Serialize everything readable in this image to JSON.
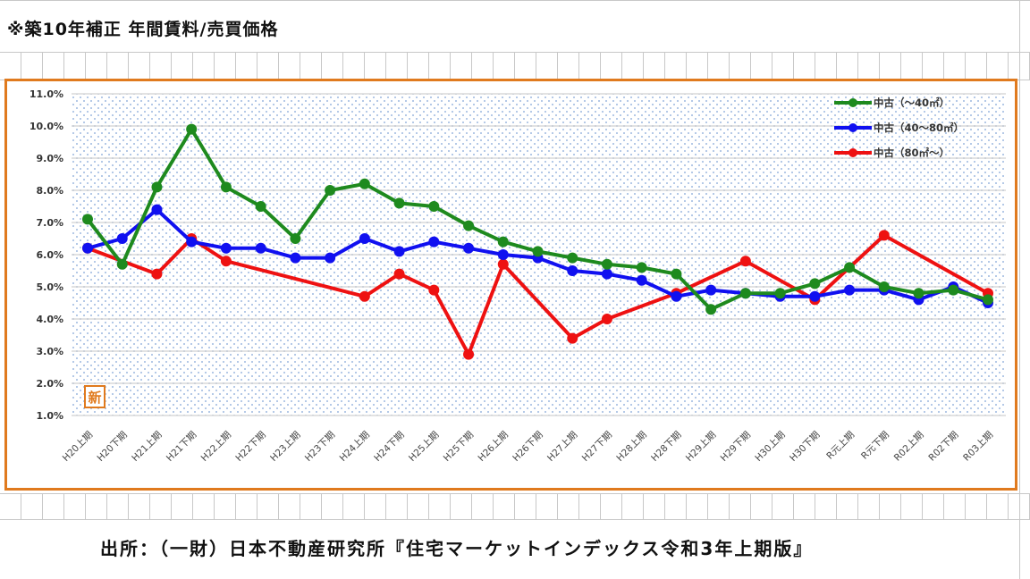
{
  "page": {
    "title": "※築10年補正 年間賃料/売買価格",
    "source": "出所：（一財）日本不動産研究所『住宅マーケットインデックス令和3年上期版』",
    "stamp": "新"
  },
  "chart_data": {
    "type": "line",
    "categories": [
      "H20上期",
      "H20下期",
      "H21上期",
      "H21下期",
      "H22上期",
      "H22下期",
      "H23上期",
      "H23下期",
      "H24上期",
      "H24下期",
      "H25上期",
      "H25下期",
      "H26上期",
      "H26下期",
      "H27上期",
      "H27下期",
      "H28上期",
      "H28下期",
      "H29上期",
      "H29下期",
      "H30上期",
      "H30下期",
      "R元上期",
      "R元下期",
      "R02上期",
      "R02下期",
      "R03上期"
    ],
    "ylim": [
      1.0,
      11.0
    ],
    "yticks": [
      "1.0%",
      "2.0%",
      "3.0%",
      "4.0%",
      "5.0%",
      "6.0%",
      "7.0%",
      "8.0%",
      "9.0%",
      "10.0%",
      "11.0%"
    ],
    "legend_position": "top-right",
    "series": [
      {
        "name": "中古（～40㎡）",
        "color": "#1e8a1e",
        "values": [
          7.1,
          5.7,
          8.1,
          9.9,
          8.1,
          7.5,
          6.5,
          8.0,
          8.2,
          7.6,
          7.5,
          6.9,
          6.4,
          6.1,
          5.9,
          5.7,
          5.6,
          5.4,
          4.3,
          4.8,
          4.8,
          5.1,
          5.6,
          5.0,
          4.8,
          4.9,
          4.6
        ]
      },
      {
        "name": "中古（40～80㎡）",
        "color": "#1010f0",
        "values": [
          6.2,
          6.5,
          7.4,
          6.4,
          6.2,
          6.2,
          5.9,
          5.9,
          6.5,
          6.1,
          6.4,
          6.2,
          6.0,
          5.9,
          5.5,
          5.4,
          5.2,
          4.7,
          4.9,
          4.8,
          4.7,
          4.7,
          4.9,
          4.9,
          4.6,
          5.0,
          4.5
        ]
      },
      {
        "name": "中古（80㎡～）",
        "color": "#ee1111",
        "points": [
          {
            "x": "H20上期",
            "y": 6.2
          },
          {
            "x": "H21上期",
            "y": 5.4
          },
          {
            "x": "H21下期",
            "y": 6.5
          },
          {
            "x": "H22上期",
            "y": 5.8
          },
          {
            "x": "H24上期",
            "y": 4.7
          },
          {
            "x": "H24下期",
            "y": 5.4
          },
          {
            "x": "H25上期",
            "y": 4.9
          },
          {
            "x": "H25下期",
            "y": 2.9
          },
          {
            "x": "H26上期",
            "y": 5.7
          },
          {
            "x": "H27上期",
            "y": 3.4
          },
          {
            "x": "H27下期",
            "y": 4.0
          },
          {
            "x": "H28下期",
            "y": 4.8
          },
          {
            "x": "H29下期",
            "y": 5.8
          },
          {
            "x": "H30下期",
            "y": 4.6
          },
          {
            "x": "R元下期",
            "y": 6.6
          },
          {
            "x": "R03上期",
            "y": 4.8
          }
        ]
      }
    ]
  }
}
